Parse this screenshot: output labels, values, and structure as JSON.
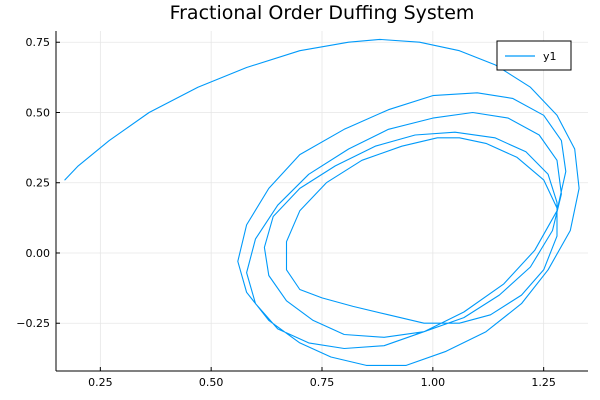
{
  "chart_data": {
    "type": "line",
    "title": "Fractional Order Duffing System",
    "xlabel": "",
    "ylabel": "",
    "xlim": [
      0.15,
      1.35
    ],
    "ylim": [
      -0.42,
      0.79
    ],
    "xticks": [
      0.25,
      0.5,
      0.75,
      1.0,
      1.25
    ],
    "xtick_labels": [
      "0.25",
      "0.50",
      "0.75",
      "1.00",
      "1.25"
    ],
    "yticks": [
      -0.25,
      0.0,
      0.25,
      0.5,
      0.75
    ],
    "ytick_labels": [
      "−0.25",
      "0.00",
      "0.25",
      "0.50",
      "0.75"
    ],
    "grid": true,
    "legend_position": "top-right",
    "colors": {
      "series": "#009AFA",
      "grid": "#E6E6E6",
      "axis": "#000000"
    },
    "series": [
      {
        "name": "y1",
        "x": [
          0.17,
          0.2,
          0.27,
          0.36,
          0.47,
          0.58,
          0.7,
          0.81,
          0.88,
          0.97,
          1.06,
          1.14,
          1.22,
          1.28,
          1.32,
          1.33,
          1.31,
          1.26,
          1.2,
          1.12,
          1.03,
          0.94,
          0.85,
          0.77,
          0.7,
          0.63,
          0.58,
          0.56,
          0.58,
          0.63,
          0.7,
          0.8,
          0.9,
          1.0,
          1.1,
          1.18,
          1.25,
          1.29,
          1.3,
          1.28,
          1.23,
          1.16,
          1.07,
          0.98,
          0.89,
          0.8,
          0.72,
          0.65,
          0.6,
          0.58,
          0.6,
          0.65,
          0.72,
          0.81,
          0.9,
          1.0,
          1.09,
          1.17,
          1.24,
          1.28,
          1.29,
          1.27,
          1.22,
          1.15,
          1.07,
          0.98,
          0.89,
          0.8,
          0.73,
          0.67,
          0.63,
          0.62,
          0.64,
          0.7,
          0.78,
          0.87,
          0.96,
          1.05,
          1.14,
          1.21,
          1.26,
          1.28,
          1.28,
          1.25,
          1.2,
          1.13,
          1.06,
          0.98,
          0.9,
          0.82,
          0.75,
          0.7,
          0.67,
          0.67,
          0.7,
          0.76,
          0.84,
          0.93,
          1.01,
          1.06,
          1.12,
          1.19,
          1.25,
          1.28,
          1.28,
          1.25,
          1.2,
          1.13,
          1.06,
          0.98,
          0.9,
          0.82,
          0.75,
          0.7,
          0.67,
          0.67,
          0.7,
          0.76,
          0.84,
          0.93,
          1.01,
          1.06
        ],
        "y": [
          0.26,
          0.31,
          0.4,
          0.5,
          0.59,
          0.66,
          0.72,
          0.75,
          0.76,
          0.75,
          0.72,
          0.67,
          0.59,
          0.49,
          0.37,
          0.23,
          0.08,
          -0.06,
          -0.18,
          -0.28,
          -0.35,
          -0.4,
          -0.4,
          -0.37,
          -0.32,
          -0.24,
          -0.14,
          -0.03,
          0.1,
          0.23,
          0.35,
          0.44,
          0.51,
          0.56,
          0.57,
          0.55,
          0.49,
          0.4,
          0.29,
          0.15,
          0.01,
          -0.11,
          -0.21,
          -0.28,
          -0.33,
          -0.34,
          -0.32,
          -0.27,
          -0.18,
          -0.07,
          0.05,
          0.17,
          0.28,
          0.37,
          0.44,
          0.48,
          0.5,
          0.48,
          0.42,
          0.33,
          0.21,
          0.08,
          -0.05,
          -0.15,
          -0.23,
          -0.28,
          -0.3,
          -0.29,
          -0.24,
          -0.17,
          -0.08,
          0.02,
          0.13,
          0.23,
          0.31,
          0.38,
          0.42,
          0.43,
          0.41,
          0.36,
          0.28,
          0.18,
          0.06,
          -0.06,
          -0.15,
          -0.22,
          -0.25,
          -0.25,
          -0.22,
          -0.19,
          -0.16,
          -0.13,
          -0.06,
          0.04,
          0.15,
          0.25,
          0.33,
          0.38,
          0.41,
          0.41,
          0.39,
          0.34,
          0.26,
          0.16,
          0.06,
          -0.06,
          -0.15,
          -0.22,
          -0.25,
          -0.25,
          -0.22,
          -0.19,
          -0.16,
          -0.13,
          -0.06,
          0.04,
          0.15,
          0.25,
          0.33,
          0.38,
          0.41,
          0.41
        ]
      }
    ]
  }
}
